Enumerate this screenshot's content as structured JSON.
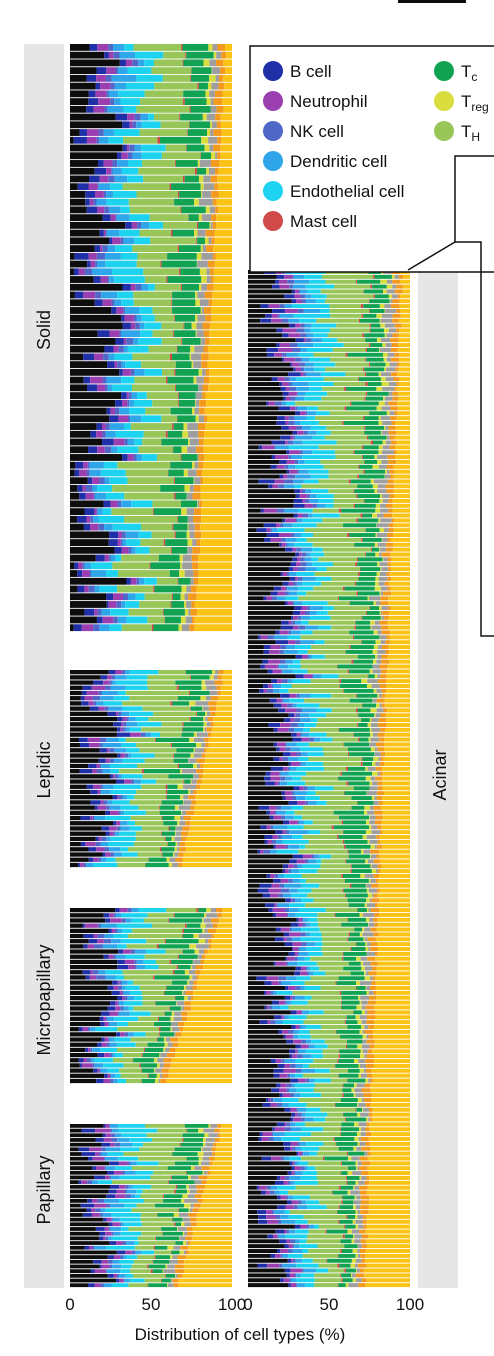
{
  "chart_data": {
    "type": "bar",
    "orientation": "horizontal",
    "stacked": true,
    "normalized_to": 100,
    "xlabel": "Distribution of cell types (%)",
    "xlim": [
      0,
      100
    ],
    "xticks": [
      "0",
      "50",
      "100"
    ],
    "grid": false,
    "legend": {
      "position": "top-right",
      "entries": [
        {
          "label": "B cell",
          "color": "#1f2fa8"
        },
        {
          "label": "Neutrophil",
          "color": "#9b3fb0"
        },
        {
          "label": "NK cell",
          "color": "#4f68c8"
        },
        {
          "label": "Dendritic cell",
          "color": "#2fa6ea"
        },
        {
          "label": "Endothelial cell",
          "color": "#1ed3ef"
        },
        {
          "label": "Mast cell",
          "color": "#d04a4a"
        },
        {
          "label": "T",
          "sub": "c",
          "color": "#12a352"
        },
        {
          "label": "T",
          "sub": "reg",
          "color": "#d9dd3e"
        },
        {
          "label": "T",
          "sub": "H",
          "color": "#98c659"
        }
      ]
    },
    "categories_order": [
      "Black",
      "B cell",
      "Neutrophil",
      "NK cell",
      "Dendritic cell",
      "Endothelial cell",
      "T_H",
      "Mast cell",
      "T_c",
      "T_reg",
      "Gray",
      "Orange",
      "Yellow"
    ],
    "category_colors": {
      "Black": "#0d0d0d",
      "B cell": "#1f2fa8",
      "Neutrophil": "#9b3fb0",
      "NK cell": "#4f68c8",
      "Dendritic cell": "#2fa6ea",
      "Endothelial cell": "#1ed3ef",
      "T_H": "#98c659",
      "Mast cell": "#d04a4a",
      "T_c": "#12a352",
      "T_reg": "#d9dd3e",
      "Gray": "#9e9e9e",
      "Orange": "#f39a1e",
      "Yellow": "#fcc317"
    },
    "panels": [
      {
        "name": "Solid",
        "column": "left",
        "n_samples": 76,
        "fractions": {
          "black": [
            0.02,
            0.35
          ],
          "dc": 0.06,
          "endo": 0.12,
          "th": 0.2,
          "orangeEnd": [
            0.97,
            0.78
          ],
          "yellowStart": [
            0.93,
            0.5
          ]
        }
      },
      {
        "name": "Lepidic",
        "column": "left",
        "n_samples": 38,
        "fractions": {
          "black": [
            0.05,
            0.3
          ],
          "dc": 0.06,
          "endo": 0.15,
          "th": 0.22,
          "orangeEnd": [
            0.96,
            0.7
          ],
          "yellowStart": [
            0.92,
            0.6
          ]
        }
      },
      {
        "name": "Micropapillary",
        "column": "left",
        "n_samples": 34,
        "fractions": {
          "black": [
            0.05,
            0.3
          ],
          "dc": 0.05,
          "endo": 0.14,
          "th": 0.2,
          "orangeEnd": [
            0.95,
            0.6
          ],
          "yellowStart": [
            0.9,
            0.55
          ]
        }
      },
      {
        "name": "Papillary",
        "column": "left",
        "n_samples": 35,
        "fractions": {
          "black": [
            0.05,
            0.3
          ],
          "dc": 0.05,
          "endo": 0.14,
          "th": 0.2,
          "orangeEnd": [
            0.95,
            0.68
          ],
          "yellowStart": [
            0.9,
            0.6
          ]
        }
      },
      {
        "name": "Acinar",
        "column": "right",
        "n_samples": 209,
        "fractions": {
          "black": [
            0.05,
            0.3
          ],
          "dc": 0.05,
          "endo": 0.12,
          "th": 0.22,
          "orangeEnd": [
            0.96,
            0.73
          ],
          "yellowStart": [
            0.92,
            0.55
          ]
        }
      }
    ]
  }
}
